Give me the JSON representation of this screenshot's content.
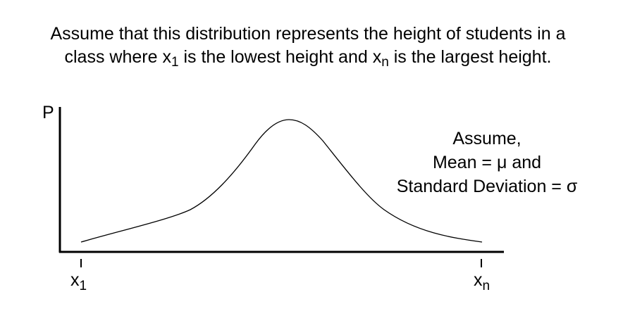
{
  "caption": {
    "line1": "Assume that this distribution represents the height of students in a",
    "line2_a": "class where x",
    "line2_sub1": "1",
    "line2_b": " is the lowest height and x",
    "line2_sub2": "n",
    "line2_c": " is the largest height."
  },
  "diagram": {
    "y_axis_label": "P",
    "x_left_label": "x",
    "x_left_sub": "1",
    "x_right_label": "x",
    "x_right_sub": "n",
    "note": {
      "line1": "Assume,",
      "line2": "Mean = μ and",
      "line3": "Standard Deviation = σ"
    },
    "line_color": "#000000"
  }
}
